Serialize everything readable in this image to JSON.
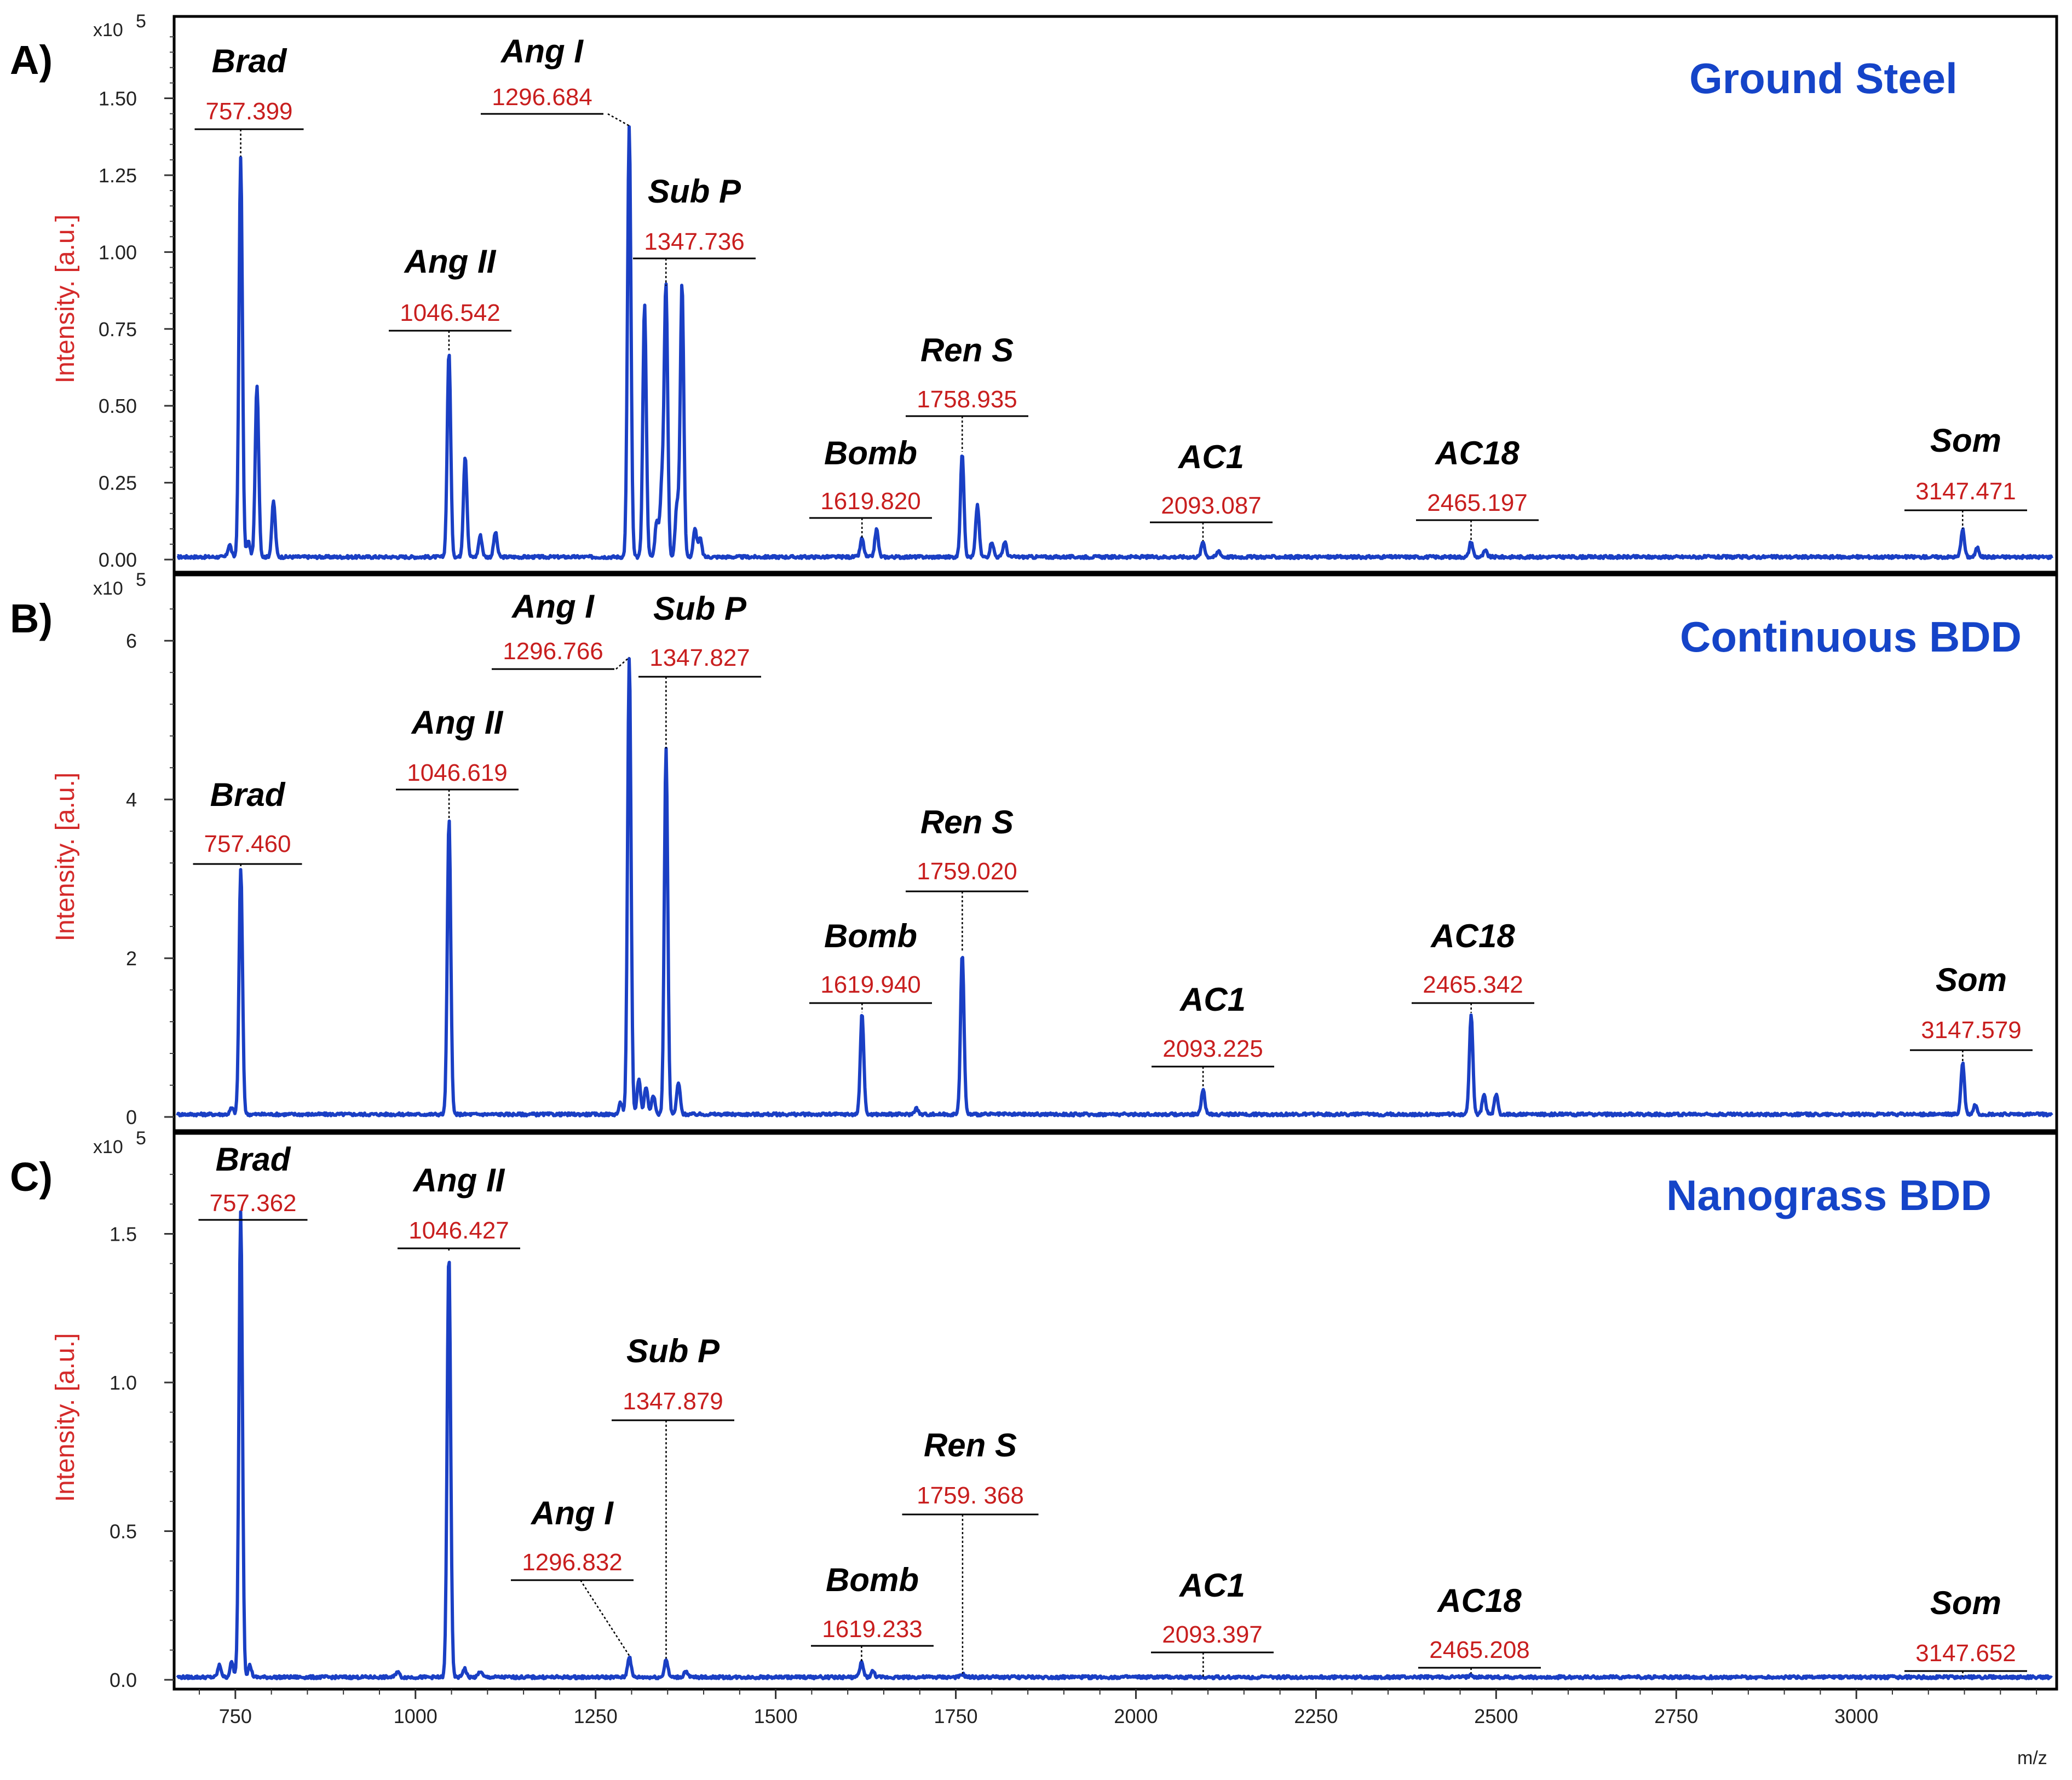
{
  "chart_data": [
    {
      "type": "line",
      "panel_label": "A)",
      "title": "Ground Steel",
      "xlabel": "m/z",
      "ylabel": "Intensity. [a.u.]",
      "y_multiplier": "x10",
      "y_exponent": "5",
      "xlim": [
        665,
        3275
      ],
      "ylim": [
        0,
        1.72
      ],
      "y_ticks": [
        0,
        0.25,
        0.5,
        0.75,
        1.0,
        1.25,
        1.5
      ],
      "y_tick_labels": [
        "0.00",
        "0.25",
        "0.50",
        "0.75",
        "1.00",
        "1.25",
        "1.50"
      ],
      "line_color": "#1a3fc4",
      "annotated_peaks": [
        {
          "name": "Brad",
          "mz_label": "757.399",
          "mz": 757.4,
          "intensity": 1.3
        },
        {
          "name": "Ang II",
          "mz_label": "1046.542",
          "mz": 1046.5,
          "intensity": 0.67
        },
        {
          "name": "Ang I",
          "mz_label": "1296.684",
          "mz": 1296.7,
          "intensity": 1.4
        },
        {
          "name": "Sub P",
          "mz_label": "1347.736",
          "mz": 1347.7,
          "intensity": 0.88
        },
        {
          "name": "Bomb",
          "mz_label": "1619.820",
          "mz": 1619.8,
          "intensity": 0.06
        },
        {
          "name": "Ren S",
          "mz_label": "1758.935",
          "mz": 1758.9,
          "intensity": 0.34
        },
        {
          "name": "AC1",
          "mz_label": "2093.087",
          "mz": 2093.1,
          "intensity": 0.05
        },
        {
          "name": "AC18",
          "mz_label": "2465.197",
          "mz": 2465.2,
          "intensity": 0.05
        },
        {
          "name": "Som",
          "mz_label": "3147.471",
          "mz": 3147.5,
          "intensity": 0.09
        }
      ],
      "other_peaks": [
        {
          "mz": 780,
          "intensity": 0.56
        },
        {
          "mz": 803,
          "intensity": 0.18
        },
        {
          "mz": 742,
          "intensity": 0.04
        },
        {
          "mz": 768,
          "intensity": 0.05
        },
        {
          "mz": 1069,
          "intensity": 0.33
        },
        {
          "mz": 1090,
          "intensity": 0.07
        },
        {
          "mz": 1111,
          "intensity": 0.08
        },
        {
          "mz": 1318,
          "intensity": 0.82
        },
        {
          "mz": 1335,
          "intensity": 0.12
        },
        {
          "mz": 1342,
          "intensity": 0.23
        },
        {
          "mz": 1363,
          "intensity": 0.17
        },
        {
          "mz": 1370,
          "intensity": 0.89
        },
        {
          "mz": 1388,
          "intensity": 0.09
        },
        {
          "mz": 1395,
          "intensity": 0.06
        },
        {
          "mz": 1640,
          "intensity": 0.09
        },
        {
          "mz": 1780,
          "intensity": 0.17
        },
        {
          "mz": 1800,
          "intensity": 0.05
        },
        {
          "mz": 1818,
          "intensity": 0.05
        },
        {
          "mz": 2115,
          "intensity": 0.02
        },
        {
          "mz": 2485,
          "intensity": 0.02
        },
        {
          "mz": 3168,
          "intensity": 0.03
        }
      ]
    },
    {
      "type": "line",
      "panel_label": "B)",
      "title": "Continuous BDD",
      "xlabel": "m/z",
      "ylabel": "Intensity. [a.u.]",
      "y_multiplier": "x10",
      "y_exponent": "5",
      "xlim": [
        665,
        3275
      ],
      "ylim": [
        0,
        6.65
      ],
      "y_ticks": [
        0,
        2,
        4,
        6
      ],
      "y_tick_labels": [
        "0",
        "2",
        "4",
        "6"
      ],
      "line_color": "#1a3fc4",
      "annotated_peaks": [
        {
          "name": "Brad",
          "mz_label": "757.460",
          "mz": 757.5,
          "intensity": 3.1
        },
        {
          "name": "Ang II",
          "mz_label": "1046.619",
          "mz": 1046.6,
          "intensity": 3.72
        },
        {
          "name": "Ang I",
          "mz_label": "1296.766",
          "mz": 1296.8,
          "intensity": 5.75
        },
        {
          "name": "Sub P",
          "mz_label": "1347.827",
          "mz": 1347.8,
          "intensity": 4.6
        },
        {
          "name": "Bomb",
          "mz_label": "1619.940",
          "mz": 1619.9,
          "intensity": 1.28
        },
        {
          "name": "Ren S",
          "mz_label": "1759.020",
          "mz": 1759.0,
          "intensity": 2.03
        },
        {
          "name": "AC1",
          "mz_label": "2093.225",
          "mz": 2093.2,
          "intensity": 0.32
        },
        {
          "name": "AC18",
          "mz_label": "2465.342",
          "mz": 2465.3,
          "intensity": 1.27
        },
        {
          "name": "Som",
          "mz_label": "3147.579",
          "mz": 3147.6,
          "intensity": 0.65
        }
      ],
      "other_peaks": [
        {
          "mz": 1310,
          "intensity": 0.45
        },
        {
          "mz": 1320,
          "intensity": 0.35
        },
        {
          "mz": 1330,
          "intensity": 0.25
        },
        {
          "mz": 1365,
          "intensity": 0.4
        },
        {
          "mz": 1285,
          "intensity": 0.15
        },
        {
          "mz": 2483,
          "intensity": 0.25
        },
        {
          "mz": 2500,
          "intensity": 0.25
        },
        {
          "mz": 3165,
          "intensity": 0.12
        },
        {
          "mz": 1695,
          "intensity": 0.08
        },
        {
          "mz": 745,
          "intensity": 0.08
        }
      ]
    },
    {
      "type": "line",
      "panel_label": "C)",
      "title": "Nanograss BDD",
      "xlabel": "m/z",
      "ylabel": "Intensity. [a.u.]",
      "y_multiplier": "x10",
      "y_exponent": "5",
      "xlim": [
        665,
        3275
      ],
      "ylim": [
        0,
        1.79
      ],
      "y_ticks": [
        0,
        0.5,
        1.0,
        1.5
      ],
      "y_tick_labels": [
        "0.0",
        "0.5",
        "1.0",
        "1.5"
      ],
      "x_ticks": [
        750,
        1000,
        1250,
        1500,
        1750,
        2000,
        2250,
        2500,
        2750,
        3000
      ],
      "x_tick_labels": [
        "750",
        "1000",
        "1250",
        "1500",
        "1750",
        "2000",
        "2250",
        "2500",
        "2750",
        "3000"
      ],
      "line_color": "#1a3fc4",
      "annotated_peaks": [
        {
          "name": "Brad",
          "mz_label": "757.362",
          "mz": 757.4,
          "intensity": 1.57
        },
        {
          "name": "Ang II",
          "mz_label": "1046.427",
          "mz": 1046.4,
          "intensity": 1.43
        },
        {
          "name": "Ang I",
          "mz_label": "1296.832",
          "mz": 1296.8,
          "intensity": 0.07
        },
        {
          "name": "Sub P",
          "mz_label": "1347.879",
          "mz": 1347.9,
          "intensity": 0.06
        },
        {
          "name": "Bomb",
          "mz_label": "1619.233",
          "mz": 1619.2,
          "intensity": 0.05
        },
        {
          "name": "Ren S",
          "mz_label": "1759. 368",
          "mz": 1759.4,
          "intensity": 0.01
        },
        {
          "name": "AC1",
          "mz_label": "2093.397",
          "mz": 2093.4,
          "intensity": 0.0
        },
        {
          "name": "AC18",
          "mz_label": "2465.208",
          "mz": 2465.2,
          "intensity": 0.01
        },
        {
          "name": "Som",
          "mz_label": "3147.652",
          "mz": 3147.7,
          "intensity": 0.0
        }
      ],
      "other_peaks": [
        {
          "mz": 728,
          "intensity": 0.04
        },
        {
          "mz": 745,
          "intensity": 0.05
        },
        {
          "mz": 770,
          "intensity": 0.04
        },
        {
          "mz": 1068,
          "intensity": 0.03
        },
        {
          "mz": 1090,
          "intensity": 0.02
        },
        {
          "mz": 975,
          "intensity": 0.02
        },
        {
          "mz": 1635,
          "intensity": 0.02
        },
        {
          "mz": 1375,
          "intensity": 0.02
        }
      ]
    }
  ]
}
